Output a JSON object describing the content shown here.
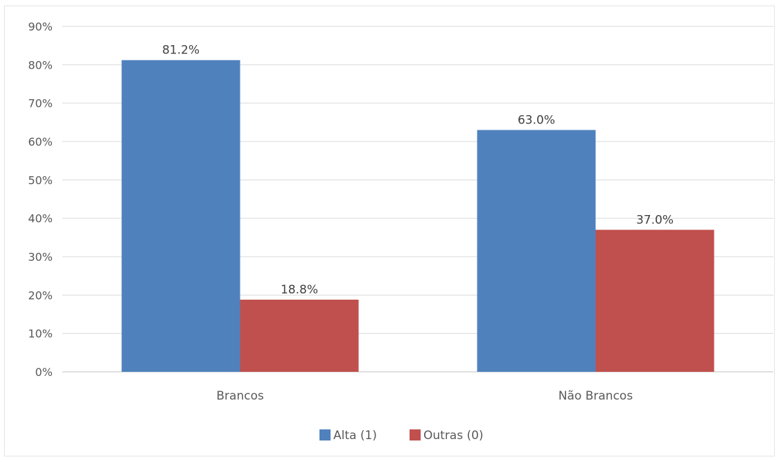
{
  "chart_data": {
    "type": "bar",
    "title": "",
    "xlabel": "",
    "ylabel": "",
    "categories": [
      "Brancos",
      "Não Brancos"
    ],
    "series": [
      {
        "name": "Alta (1)",
        "values": [
          81.2,
          63.0
        ],
        "color": "#4f81bd",
        "labels": [
          "81.2%",
          "63.0%"
        ]
      },
      {
        "name": "Outras (0)",
        "values": [
          18.8,
          37.0
        ],
        "color": "#c0504d",
        "labels": [
          "18.8%",
          "37.0%"
        ]
      }
    ],
    "ylim": [
      0,
      90
    ],
    "yticks": [
      0,
      10,
      20,
      30,
      40,
      50,
      60,
      70,
      80,
      90
    ],
    "ytick_labels": [
      "0%",
      "10%",
      "20%",
      "30%",
      "40%",
      "50%",
      "60%",
      "70%",
      "80%",
      "90%"
    ],
    "grid": true,
    "legend_position": "bottom",
    "gridline_color": "#d9d9d9",
    "axis_color": "#bfbfbf"
  }
}
